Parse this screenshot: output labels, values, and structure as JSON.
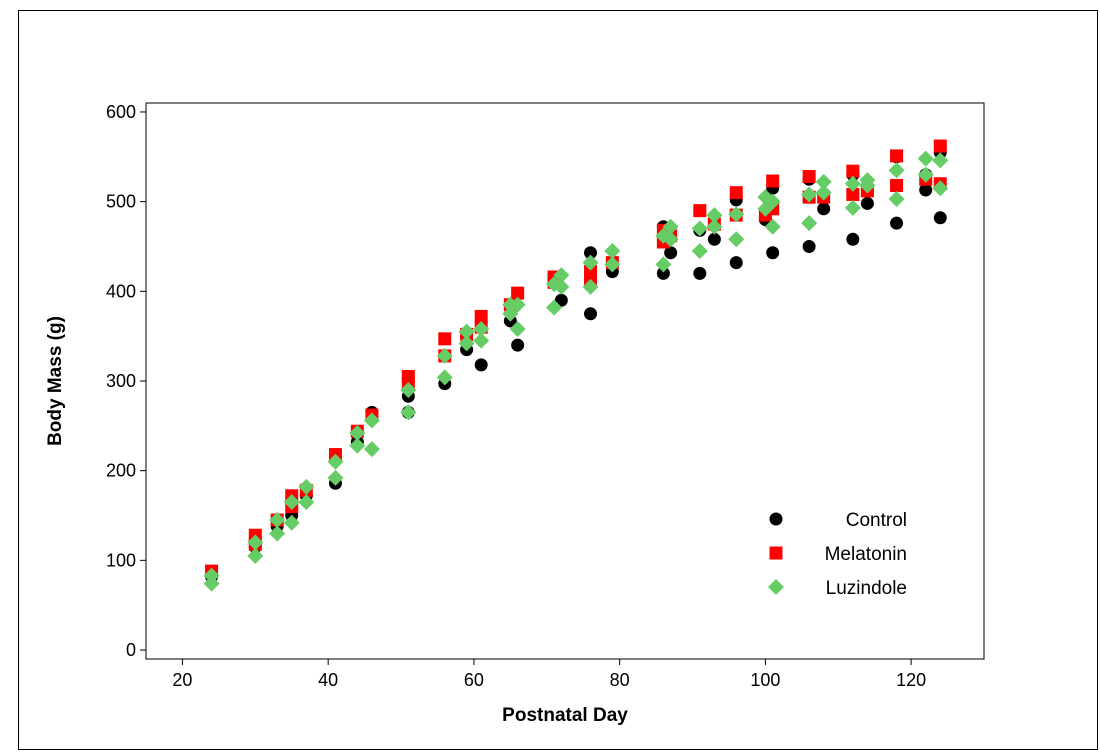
{
  "chart_data": {
    "type": "scatter",
    "title": "",
    "xlabel": "Postnatal Day",
    "ylabel": "Body Mass (g)",
    "xlim": [
      15,
      130
    ],
    "ylim": [
      -10,
      610
    ],
    "xticks": [
      20,
      40,
      60,
      80,
      100,
      120
    ],
    "yticks": [
      0,
      100,
      200,
      300,
      400,
      500,
      600
    ],
    "grid": false,
    "legend_position": "bottom-right",
    "series": [
      {
        "name": "Control",
        "marker": "circle",
        "color": "#000000",
        "points": [
          [
            24,
            82
          ],
          [
            30,
            115
          ],
          [
            33,
            138
          ],
          [
            35,
            150
          ],
          [
            37,
            172
          ],
          [
            41,
            186
          ],
          [
            44,
            232
          ],
          [
            46,
            265
          ],
          [
            51,
            265
          ],
          [
            51,
            283
          ],
          [
            56,
            297
          ],
          [
            59,
            335
          ],
          [
            61,
            318
          ],
          [
            65,
            367
          ],
          [
            66,
            340
          ],
          [
            71,
            410
          ],
          [
            72,
            390
          ],
          [
            76,
            375
          ],
          [
            76,
            443
          ],
          [
            79,
            422
          ],
          [
            86,
            420
          ],
          [
            86,
            472
          ],
          [
            87,
            443
          ],
          [
            91,
            420
          ],
          [
            91,
            468
          ],
          [
            93,
            458
          ],
          [
            96,
            432
          ],
          [
            96,
            502
          ],
          [
            100,
            480
          ],
          [
            101,
            443
          ],
          [
            101,
            515
          ],
          [
            106,
            450
          ],
          [
            106,
            525
          ],
          [
            108,
            492
          ],
          [
            112,
            458
          ],
          [
            112,
            530
          ],
          [
            114,
            498
          ],
          [
            118,
            476
          ],
          [
            118,
            550
          ],
          [
            122,
            513
          ],
          [
            122,
            530
          ],
          [
            124,
            482
          ],
          [
            124,
            555
          ]
        ]
      },
      {
        "name": "Melatonin",
        "marker": "square",
        "color": "#ff0000",
        "points": [
          [
            24,
            88
          ],
          [
            30,
            118
          ],
          [
            30,
            128
          ],
          [
            33,
            145
          ],
          [
            35,
            160
          ],
          [
            35,
            172
          ],
          [
            37,
            178
          ],
          [
            41,
            218
          ],
          [
            44,
            244
          ],
          [
            46,
            262
          ],
          [
            51,
            298
          ],
          [
            51,
            305
          ],
          [
            56,
            328
          ],
          [
            56,
            347
          ],
          [
            59,
            352
          ],
          [
            61,
            360
          ],
          [
            61,
            372
          ],
          [
            65,
            385
          ],
          [
            66,
            398
          ],
          [
            71,
            410
          ],
          [
            71,
            416
          ],
          [
            76,
            422
          ],
          [
            76,
            412
          ],
          [
            79,
            432
          ],
          [
            86,
            455
          ],
          [
            86,
            468
          ],
          [
            87,
            462
          ],
          [
            91,
            490
          ],
          [
            93,
            475
          ],
          [
            96,
            485
          ],
          [
            96,
            510
          ],
          [
            100,
            485
          ],
          [
            101,
            492
          ],
          [
            101,
            523
          ],
          [
            106,
            505
          ],
          [
            106,
            528
          ],
          [
            108,
            505
          ],
          [
            112,
            508
          ],
          [
            112,
            534
          ],
          [
            114,
            512
          ],
          [
            118,
            518
          ],
          [
            118,
            551
          ],
          [
            122,
            525
          ],
          [
            124,
            520
          ],
          [
            124,
            562
          ]
        ]
      },
      {
        "name": "Luzindole",
        "marker": "diamond",
        "color": "#66cc66",
        "points": [
          [
            24,
            74
          ],
          [
            24,
            83
          ],
          [
            30,
            105
          ],
          [
            30,
            120
          ],
          [
            33,
            130
          ],
          [
            33,
            145
          ],
          [
            35,
            142
          ],
          [
            35,
            165
          ],
          [
            37,
            165
          ],
          [
            37,
            182
          ],
          [
            41,
            192
          ],
          [
            41,
            210
          ],
          [
            44,
            228
          ],
          [
            44,
            242
          ],
          [
            46,
            224
          ],
          [
            46,
            256
          ],
          [
            51,
            265
          ],
          [
            51,
            290
          ],
          [
            56,
            304
          ],
          [
            56,
            328
          ],
          [
            59,
            342
          ],
          [
            59,
            355
          ],
          [
            61,
            345
          ],
          [
            61,
            358
          ],
          [
            65,
            375
          ],
          [
            65,
            385
          ],
          [
            66,
            358
          ],
          [
            66,
            385
          ],
          [
            71,
            382
          ],
          [
            71,
            408
          ],
          [
            72,
            405
          ],
          [
            72,
            418
          ],
          [
            76,
            405
          ],
          [
            76,
            432
          ],
          [
            79,
            445
          ],
          [
            79,
            430
          ],
          [
            86,
            430
          ],
          [
            86,
            462
          ],
          [
            87,
            458
          ],
          [
            87,
            472
          ],
          [
            91,
            445
          ],
          [
            91,
            470
          ],
          [
            93,
            472
          ],
          [
            93,
            485
          ],
          [
            96,
            458
          ],
          [
            96,
            486
          ],
          [
            100,
            492
          ],
          [
            100,
            505
          ],
          [
            101,
            472
          ],
          [
            101,
            500
          ],
          [
            106,
            476
          ],
          [
            106,
            508
          ],
          [
            108,
            510
          ],
          [
            108,
            522
          ],
          [
            112,
            493
          ],
          [
            112,
            520
          ],
          [
            114,
            518
          ],
          [
            114,
            524
          ],
          [
            118,
            503
          ],
          [
            118,
            535
          ],
          [
            122,
            530
          ],
          [
            122,
            548
          ],
          [
            124,
            515
          ],
          [
            124,
            546
          ]
        ]
      }
    ]
  }
}
